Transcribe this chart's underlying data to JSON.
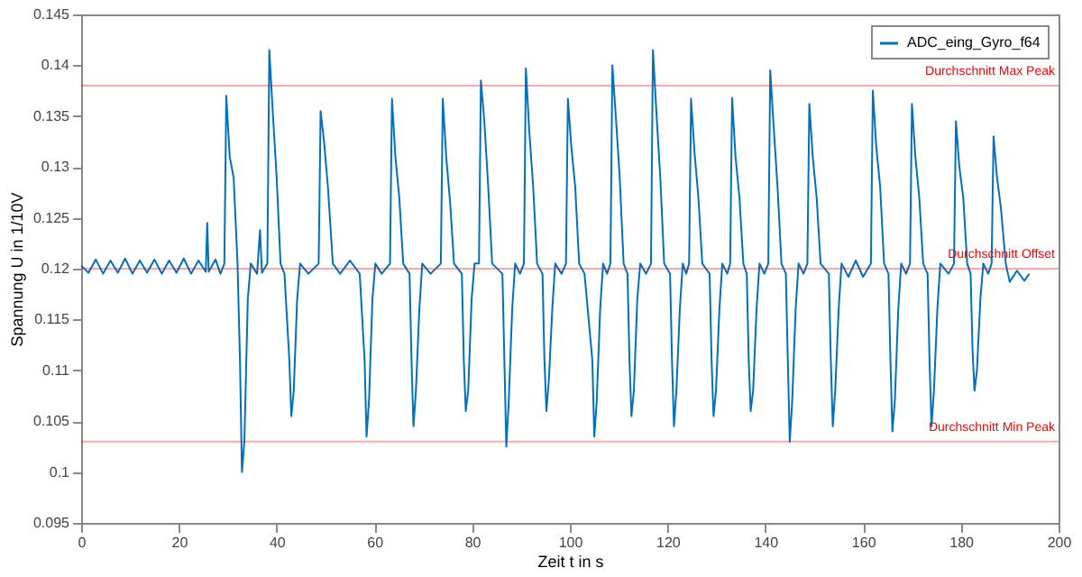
{
  "chart_data": {
    "type": "line",
    "xlabel": "Zeit t in s",
    "ylabel": "Spannung U in 1/10V",
    "xlim": [
      0,
      200
    ],
    "xticks": [
      0,
      20,
      40,
      60,
      80,
      100,
      120,
      140,
      160,
      180,
      200
    ],
    "ylim": [
      0.095,
      0.145
    ],
    "yticks": [
      0.095,
      0.1,
      0.105,
      0.11,
      0.115,
      0.12,
      0.125,
      0.13,
      0.135,
      0.14,
      0.145
    ],
    "grid": false,
    "legend": "top right",
    "series": [
      {
        "name": "ADC_eing_Gyro_f64",
        "color": "#0072bd",
        "x": [
          0,
          1.5,
          3,
          4.5,
          6,
          7.5,
          9,
          10.5,
          12,
          13.5,
          15,
          16.5,
          18,
          19.5,
          21,
          22.5,
          24,
          25.5,
          25.8,
          26.1,
          27.5,
          28.5,
          29.3,
          29.7,
          30.4,
          31.2,
          32.0,
          32.5,
          32.9,
          33.4,
          34.1,
          34.7,
          36,
          36.6,
          37,
          38.1,
          38.5,
          39.2,
          40,
          40.8,
          41.6,
          42.6,
          43,
          43.5,
          44.2,
          44.8,
          46.5,
          48.6,
          49,
          49.7,
          50.5,
          51.5,
          53,
          55,
          57,
          58,
          58.4,
          58.9,
          59.6,
          60.2,
          61.5,
          63.2,
          63.6,
          64.3,
          65.1,
          65.9,
          67.2,
          67.6,
          68,
          68.5,
          69.2,
          69.8,
          71.5,
          73.6,
          74,
          74.7,
          75.5,
          76.3,
          77.9,
          78.3,
          78.7,
          79.2,
          79.9,
          80.5,
          81.4,
          81.8,
          82.5,
          83.3,
          84.1,
          86.2,
          86.6,
          87,
          87.5,
          88.2,
          88.8,
          89.8,
          90.6,
          91,
          91.7,
          92.5,
          93.3,
          94.4,
          94.8,
          95.2,
          95.7,
          96.4,
          97,
          98.3,
          99.2,
          99.6,
          100.3,
          101.1,
          101.9,
          103,
          104.6,
          105,
          105.5,
          106.2,
          106.8,
          107.6,
          108.3,
          108.7,
          109.4,
          110.2,
          111,
          111.8,
          112.2,
          112.6,
          113.1,
          113.8,
          114.4,
          115.6,
          116.6,
          117,
          117.7,
          118.5,
          119.3,
          120.5,
          120.9,
          121.3,
          121.8,
          122.5,
          123.1,
          123.8,
          124.4,
          124.8,
          125.5,
          126.3,
          127.1,
          128.6,
          129,
          129.4,
          129.9,
          130.6,
          131.2,
          132.2,
          132.8,
          133.2,
          133.9,
          134.7,
          135.5,
          136.2,
          136.6,
          137,
          137.5,
          138.2,
          138.8,
          139.8,
          140.6,
          141,
          141.7,
          142.5,
          143.3,
          144.2,
          144.6,
          145,
          145.5,
          146.2,
          146.8,
          147.8,
          148.6,
          149,
          149.7,
          150.5,
          151.3,
          153,
          153.4,
          153.8,
          154.3,
          155,
          155.6,
          157,
          158.5,
          160,
          161.6,
          162,
          162.7,
          163.5,
          164.3,
          165.2,
          165.6,
          166,
          166.5,
          167.2,
          167.8,
          168.8,
          169.6,
          170,
          170.7,
          171.5,
          172.3,
          173.2,
          173.6,
          174,
          174.5,
          175.2,
          175.8,
          177.5,
          178.6,
          179,
          179.7,
          180.5,
          181.3,
          182,
          182.4,
          182.8,
          183.3,
          184,
          184.6,
          185.6,
          186.3,
          186.7,
          187.4,
          188.2,
          189.2,
          190,
          191.5,
          193,
          194
        ],
        "values": [
          0.1203,
          0.1196,
          0.1209,
          0.1195,
          0.1208,
          0.1196,
          0.121,
          0.1195,
          0.1208,
          0.1196,
          0.1209,
          0.1195,
          0.1208,
          0.1196,
          0.121,
          0.1195,
          0.1208,
          0.1197,
          0.1245,
          0.1197,
          0.1209,
          0.1195,
          0.1205,
          0.137,
          0.131,
          0.129,
          0.1205,
          0.111,
          0.1,
          0.103,
          0.117,
          0.1205,
          0.1195,
          0.1238,
          0.1196,
          0.1205,
          0.1415,
          0.1355,
          0.129,
          0.1205,
          0.1195,
          0.111,
          0.1055,
          0.108,
          0.117,
          0.1205,
          0.1195,
          0.1205,
          0.1355,
          0.1325,
          0.128,
          0.1205,
          0.1195,
          0.1208,
          0.1195,
          0.111,
          0.1035,
          0.107,
          0.117,
          0.1205,
          0.1195,
          0.1205,
          0.1367,
          0.131,
          0.127,
          0.1205,
          0.1195,
          0.111,
          0.1045,
          0.108,
          0.116,
          0.1205,
          0.1195,
          0.1205,
          0.1367,
          0.131,
          0.1265,
          0.1205,
          0.1195,
          0.111,
          0.106,
          0.108,
          0.117,
          0.1205,
          0.1205,
          0.1385,
          0.1345,
          0.128,
          0.1205,
          0.1195,
          0.111,
          0.1025,
          0.107,
          0.116,
          0.1205,
          0.1195,
          0.1205,
          0.1397,
          0.1335,
          0.128,
          0.1205,
          0.1195,
          0.111,
          0.106,
          0.109,
          0.116,
          0.1205,
          0.1195,
          0.1205,
          0.1367,
          0.132,
          0.128,
          0.1205,
          0.1195,
          0.111,
          0.1035,
          0.107,
          0.116,
          0.1205,
          0.1195,
          0.1205,
          0.14,
          0.135,
          0.129,
          0.1205,
          0.1195,
          0.111,
          0.1055,
          0.108,
          0.117,
          0.1205,
          0.1195,
          0.1205,
          0.1415,
          0.1355,
          0.129,
          0.1205,
          0.1195,
          0.111,
          0.1045,
          0.108,
          0.116,
          0.1205,
          0.1195,
          0.1205,
          0.1367,
          0.1315,
          0.127,
          0.1205,
          0.1195,
          0.111,
          0.1055,
          0.108,
          0.116,
          0.1205,
          0.1195,
          0.1205,
          0.1368,
          0.131,
          0.127,
          0.1205,
          0.1195,
          0.111,
          0.106,
          0.108,
          0.116,
          0.1205,
          0.1195,
          0.1205,
          0.1395,
          0.134,
          0.128,
          0.1205,
          0.1195,
          0.111,
          0.103,
          0.107,
          0.116,
          0.1205,
          0.1195,
          0.1205,
          0.1362,
          0.131,
          0.127,
          0.1205,
          0.1195,
          0.111,
          0.1045,
          0.108,
          0.116,
          0.1205,
          0.1192,
          0.1208,
          0.1192,
          0.1205,
          0.1375,
          0.132,
          0.128,
          0.1205,
          0.1195,
          0.111,
          0.104,
          0.107,
          0.116,
          0.1205,
          0.1195,
          0.1205,
          0.1362,
          0.131,
          0.127,
          0.1205,
          0.1195,
          0.111,
          0.1045,
          0.108,
          0.116,
          0.1205,
          0.1195,
          0.1205,
          0.1345,
          0.13,
          0.127,
          0.1205,
          0.1195,
          0.112,
          0.108,
          0.11,
          0.117,
          0.1205,
          0.1195,
          0.1205,
          0.133,
          0.129,
          0.126,
          0.1205,
          0.1187,
          0.1198,
          0.1188,
          0.1195
        ]
      }
    ],
    "ref_lines": [
      {
        "axis": "y",
        "value": 0.138,
        "label": "Durchschnitt Max Peak",
        "color": "#ff0000"
      },
      {
        "axis": "y",
        "value": 0.12,
        "label": "Durchschnitt Offset",
        "color": "#ff0000"
      },
      {
        "axis": "y",
        "value": 0.103,
        "label": "Durchschnitt Min Peak",
        "color": "#ff0000"
      }
    ]
  }
}
